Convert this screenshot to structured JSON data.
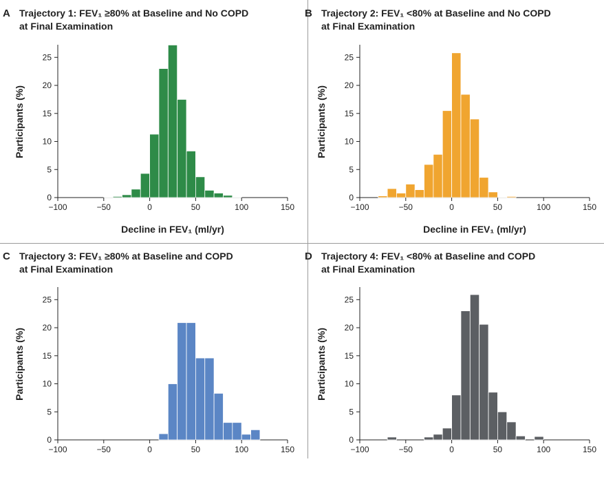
{
  "chart_data": [
    {
      "type": "bar",
      "panel_letter": "A",
      "title_line1": "Trajectory 1: FEV₁ ≥80% at Baseline and No COPD",
      "title_line2": "at Final Examination",
      "xlabel": "Decline in FEV₁ (ml/yr)",
      "ylabel": "Participants (%)",
      "color": "#2e8b48",
      "xlim": [
        -100,
        150
      ],
      "ylim": [
        0,
        27
      ],
      "xticks": [
        "−100",
        "−50",
        "0",
        "50",
        "100",
        "150"
      ],
      "yticks": [
        "0",
        "5",
        "10",
        "15",
        "20",
        "25"
      ],
      "bin_width": 10,
      "bin_starts": [
        -50,
        -40,
        -30,
        -20,
        -10,
        0,
        10,
        20,
        30,
        40,
        50,
        60,
        70,
        80,
        90
      ],
      "values": [
        0.1,
        0.2,
        0.5,
        1.5,
        4.3,
        11.3,
        23.0,
        27.2,
        17.5,
        8.3,
        3.7,
        1.3,
        0.8,
        0.4,
        0.1
      ]
    },
    {
      "type": "bar",
      "panel_letter": "B",
      "title_line1": "Trajectory 2: FEV₁ <80% at Baseline and No COPD",
      "title_line2": "at Final Examination",
      "xlabel": "Decline in FEV₁ (ml/yr)",
      "ylabel": "Participants (%)",
      "color": "#f0a530",
      "xlim": [
        -100,
        150
      ],
      "ylim": [
        0,
        27
      ],
      "xticks": [
        "−100",
        "−50",
        "0",
        "50",
        "100",
        "150"
      ],
      "yticks": [
        "0",
        "5",
        "10",
        "15",
        "20",
        "25"
      ],
      "bin_width": 10,
      "bin_starts": [
        -80,
        -70,
        -60,
        -50,
        -40,
        -30,
        -20,
        -10,
        0,
        10,
        20,
        30,
        40,
        50,
        60
      ],
      "values": [
        0.3,
        1.6,
        0.8,
        2.4,
        1.4,
        5.9,
        7.7,
        15.5,
        25.8,
        18.4,
        14.0,
        3.6,
        1.0,
        0.1,
        0.2
      ]
    },
    {
      "type": "bar",
      "panel_letter": "C",
      "title_line1": "Trajectory 3: FEV₁ ≥80% at Baseline and COPD",
      "title_line2": "at Final Examination",
      "xlabel": "",
      "ylabel": "Participants (%)",
      "color": "#5b86c5",
      "xlim": [
        -100,
        150
      ],
      "ylim": [
        0,
        27
      ],
      "xticks": [
        "−100",
        "−50",
        "0",
        "50",
        "100",
        "150"
      ],
      "yticks": [
        "0",
        "5",
        "10",
        "15",
        "20",
        "25"
      ],
      "bin_width": 10,
      "bin_starts": [
        10,
        20,
        30,
        40,
        50,
        60,
        70,
        80,
        90,
        100,
        110
      ],
      "values": [
        1.1,
        10.0,
        20.9,
        20.9,
        14.6,
        14.6,
        8.3,
        3.1,
        3.1,
        1.0,
        1.8
      ]
    },
    {
      "type": "bar",
      "panel_letter": "D",
      "title_line1": "Trajectory 4: FEV₁ <80% at Baseline and COPD",
      "title_line2": "at Final Examination",
      "xlabel": "",
      "ylabel": "Participants (%)",
      "color": "#5c5f63",
      "xlim": [
        -100,
        150
      ],
      "ylim": [
        0,
        27
      ],
      "xticks": [
        "−100",
        "−50",
        "0",
        "50",
        "100",
        "150"
      ],
      "yticks": [
        "0",
        "5",
        "10",
        "15",
        "20",
        "25"
      ],
      "bin_width": 10,
      "bin_starts": [
        -70,
        -60,
        -50,
        -40,
        -30,
        -20,
        -10,
        0,
        10,
        20,
        30,
        40,
        50,
        60,
        70,
        80,
        90
      ],
      "values": [
        0.5,
        0,
        0,
        0,
        0.5,
        1.0,
        2.1,
        8.0,
        23.0,
        25.9,
        20.6,
        8.5,
        5.0,
        3.2,
        0.7,
        0,
        0.6
      ]
    }
  ]
}
